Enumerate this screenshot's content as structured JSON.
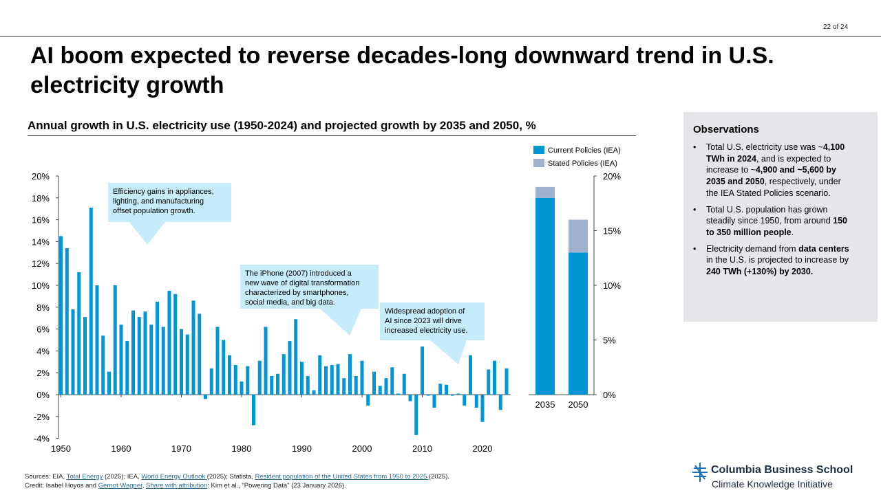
{
  "page_number": "22 of 24",
  "title": "AI boom expected to reverse decades-long downward trend in U.S. electricity growth",
  "chart_data": [
    {
      "type": "bar",
      "title": "Annual growth in U.S. electricity use (1950-2024) and projected growth by 2035 and 2050, %",
      "x": [
        1950,
        1951,
        1952,
        1953,
        1954,
        1955,
        1956,
        1957,
        1958,
        1959,
        1960,
        1961,
        1962,
        1963,
        1964,
        1965,
        1966,
        1967,
        1968,
        1969,
        1970,
        1971,
        1972,
        1973,
        1974,
        1975,
        1976,
        1977,
        1978,
        1979,
        1980,
        1981,
        1982,
        1983,
        1984,
        1985,
        1986,
        1987,
        1988,
        1989,
        1990,
        1991,
        1992,
        1993,
        1994,
        1995,
        1996,
        1997,
        1998,
        1999,
        2000,
        2001,
        2002,
        2003,
        2004,
        2005,
        2006,
        2007,
        2008,
        2009,
        2010,
        2011,
        2012,
        2013,
        2014,
        2015,
        2016,
        2017,
        2018,
        2019,
        2020,
        2021,
        2022,
        2023,
        2024
      ],
      "values": [
        14.5,
        13.4,
        7.8,
        11.2,
        7.1,
        17.1,
        10.0,
        5.4,
        2.1,
        10.0,
        6.4,
        4.9,
        7.7,
        7.1,
        7.6,
        6.4,
        8.5,
        6.2,
        9.5,
        9.2,
        6.0,
        5.5,
        8.6,
        7.4,
        -0.4,
        2.4,
        6.2,
        5.0,
        3.6,
        2.7,
        1.2,
        2.6,
        -2.8,
        3.1,
        6.2,
        1.7,
        1.9,
        3.7,
        4.9,
        6.9,
        3.0,
        1.7,
        0.4,
        3.6,
        2.6,
        2.7,
        2.8,
        1.5,
        3.7,
        1.7,
        3.1,
        -1.0,
        2.1,
        0.8,
        1.5,
        2.5,
        0.1,
        1.9,
        -0.6,
        -3.7,
        4.4,
        -0.1,
        -1.2,
        1.0,
        0.9,
        -0.1,
        0.1,
        -1.0,
        3.6,
        -1.2,
        -2.5,
        2.3,
        3.1,
        -1.4,
        2.4
      ],
      "x_ticks": [
        "1950",
        "1960",
        "1970",
        "1980",
        "1990",
        "2000",
        "2010",
        "2020"
      ],
      "y_ticks": [
        "20%",
        "18%",
        "16%",
        "14%",
        "12%",
        "10%",
        "8%",
        "6%",
        "4%",
        "2%",
        "0%",
        "-2%",
        "-4%"
      ],
      "ylim": [
        -4,
        20
      ],
      "color": "#0096d6",
      "annotations": [
        "Efficiency gains in appliances, lighting, and manufacturing offset population growth.",
        "The iPhone (2007) introduced a new wave of digital transformation characterized by smartphones, social media, and big data.",
        "Widespread adoption of AI since 2023 will drive increased electricity use."
      ]
    },
    {
      "type": "bar",
      "stacked": true,
      "categories": [
        "2035",
        "2050"
      ],
      "series": [
        {
          "name": "Current Policies (IEA)",
          "values": [
            18,
            13
          ],
          "color": "#0096d6"
        },
        {
          "name": "Stated Policies (IEA)",
          "values": [
            1,
            3
          ],
          "color": "#9fb1cf"
        }
      ],
      "y_ticks": [
        "20%",
        "15%",
        "10%",
        "5%",
        "0%"
      ],
      "ylim": [
        0,
        20
      ],
      "legend": "top"
    }
  ],
  "annotation_lines": {
    "efficiency": [
      "Efficiency gains in appliances,",
      "lighting, and manufacturing",
      "offset population growth."
    ],
    "iphone": [
      "The iPhone (2007) introduced a",
      "new wave of digital transformation",
      "characterized by smartphones,",
      "social media, and big data."
    ],
    "ai": [
      "Widespread adoption of",
      "AI  since 2023 will drive",
      "increased electricity use."
    ]
  },
  "observations": {
    "title": "Observations",
    "items": [
      [
        {
          "t": "Total U.S. electricity use was ~"
        },
        {
          "t": "4,100 TWh in 2024",
          "b": true
        },
        {
          "t": ", and is expected to increase to ~"
        },
        {
          "t": "4,900 and ~5,600 by 2035 and 2050",
          "b": true
        },
        {
          "t": ", respectively, under the IEA Stated Policies scenario."
        }
      ],
      [
        {
          "t": "Total U.S. population has grown steadily since 1950, from around "
        },
        {
          "t": "150 to 350 million people",
          "b": true
        },
        {
          "t": "."
        }
      ],
      [
        {
          "t": "Electricity demand from "
        },
        {
          "t": "data centers",
          "b": true
        },
        {
          "t": " in the U.S. is projected to increase by "
        },
        {
          "t": "240 TWh (+130%) by 2030.",
          "b": true
        }
      ]
    ]
  },
  "sources": {
    "line1": [
      {
        "t": "Sources: EIA, "
      },
      {
        "t": "Total Energy",
        "link": true
      },
      {
        "t": " (2025); IEA, "
      },
      {
        "t": "World Energy Outlook ",
        "link": true
      },
      {
        "t": "(2025); Statista, "
      },
      {
        "t": "Resident population of the United States from 1950 to 2025 ",
        "link": true
      },
      {
        "t": "(2025)."
      }
    ],
    "line2": [
      {
        "t": "Credit: Isabel Hoyos and "
      },
      {
        "t": "Gernot Wagner",
        "link": true
      },
      {
        "t": ", "
      },
      {
        "t": "Share with attribution",
        "link": true
      },
      {
        "t": ": Kim et al., \"Powering Data\" (23 January 2026)."
      }
    ]
  },
  "logo": {
    "line1": "Columbia Business School",
    "line2": "Climate Knowledge Initiative"
  }
}
